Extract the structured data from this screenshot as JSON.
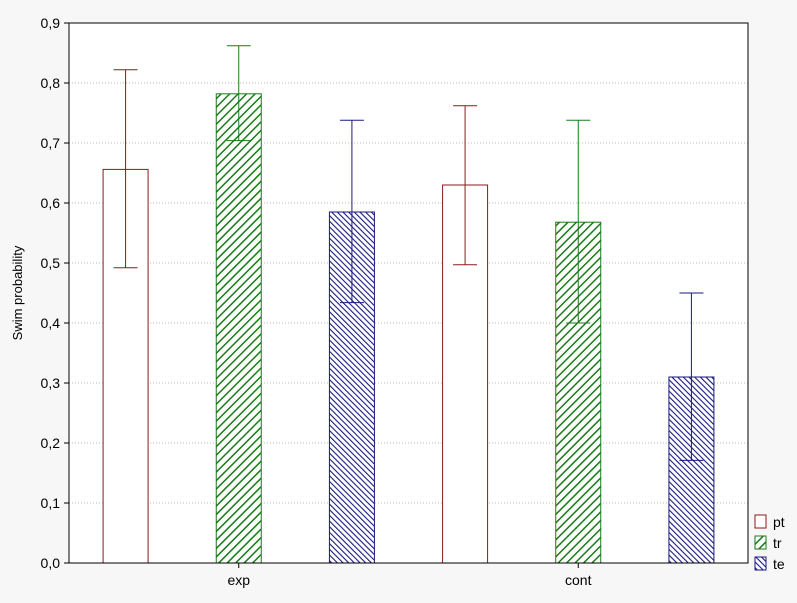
{
  "chart_data": {
    "type": "bar",
    "title": "",
    "xlabel": "",
    "ylabel": "Swim probability",
    "ylim": [
      0,
      0.9
    ],
    "yticks": [
      "0,0",
      "0,1",
      "0,2",
      "0,3",
      "0,4",
      "0,5",
      "0,6",
      "0,7",
      "0,8",
      "0,9"
    ],
    "grid": true,
    "legend_position": "bottom-right",
    "categories": [
      "exp",
      "cont"
    ],
    "series": [
      {
        "name": "pt",
        "values": [
          0.656,
          0.63
        ],
        "err_low": [
          0.492,
          0.497
        ],
        "err_high": [
          0.822,
          0.762
        ],
        "color": "#8b1a1a",
        "fill": "white"
      },
      {
        "name": "tr",
        "values": [
          0.782,
          0.568
        ],
        "err_low": [
          0.704,
          0.4
        ],
        "err_high": [
          0.862,
          0.738
        ],
        "color": "#1a7a1a",
        "fill": "hatch"
      },
      {
        "name": "te",
        "values": [
          0.585,
          0.31
        ],
        "err_low": [
          0.434,
          0.171
        ],
        "err_high": [
          0.738,
          0.45
        ],
        "color": "#1a1a80",
        "fill": "crosshatch"
      }
    ]
  }
}
